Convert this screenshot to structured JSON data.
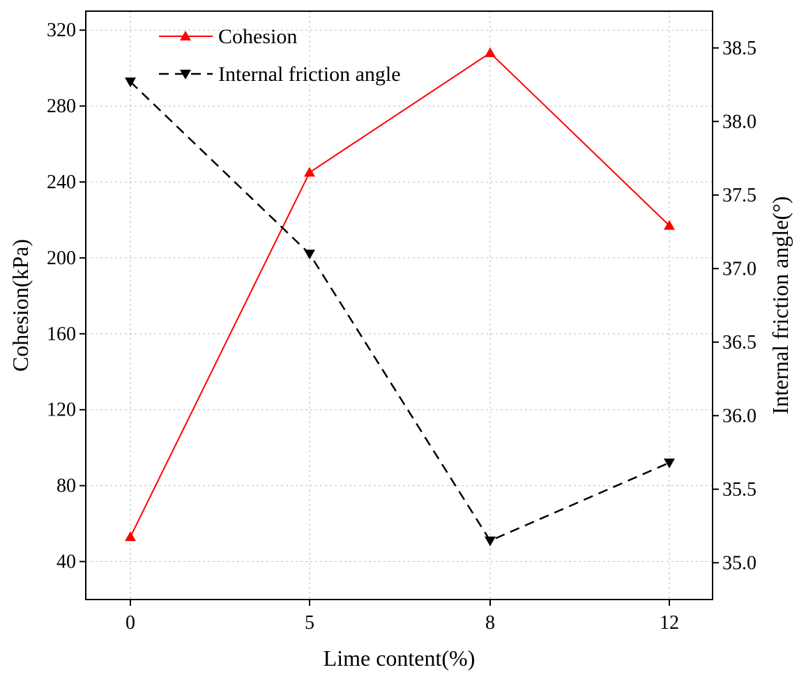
{
  "chart_data": {
    "type": "line",
    "categories": [
      "0",
      "5",
      "8",
      "12"
    ],
    "xlabel": "Lime content(%)",
    "ylabel_left": "Cohesion(kPa)",
    "ylabel_right": "Internal friction angle(°)",
    "ylim_left": [
      20,
      330
    ],
    "yticks_left": [
      40,
      80,
      120,
      160,
      200,
      240,
      280,
      320
    ],
    "ylim_right": [
      34.75,
      38.75
    ],
    "yticks_right": [
      "35.0",
      "35.5",
      "36.0",
      "36.5",
      "37.0",
      "37.5",
      "38.0",
      "38.5"
    ],
    "grid": true,
    "legend_position": "top-left",
    "series": [
      {
        "name": "Cohesion",
        "axis": "left",
        "color": "#ff0000",
        "line_style": "solid",
        "marker": "triangle-up",
        "values": [
          53,
          245,
          308,
          217
        ]
      },
      {
        "name": "Internal friction angle",
        "axis": "right",
        "color": "#000000",
        "line_style": "dashed",
        "marker": "triangle-down",
        "values": [
          38.27,
          37.1,
          35.15,
          35.68
        ]
      }
    ]
  }
}
